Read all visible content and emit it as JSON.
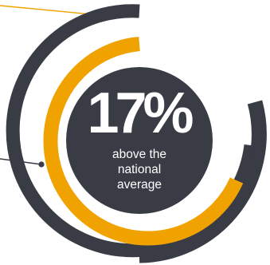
{
  "chart_data": {
    "type": "radial-infographic",
    "value": "17%",
    "label_lines": [
      "above the",
      "national",
      "average"
    ],
    "rings": [
      {
        "role": "outer",
        "color": "#393b45"
      },
      {
        "role": "inner",
        "color": "#f0a200"
      }
    ]
  },
  "colors": {
    "dark": "#393b45",
    "accent": "#f0a200",
    "text": "#ffffff",
    "background": "#ffffff"
  }
}
